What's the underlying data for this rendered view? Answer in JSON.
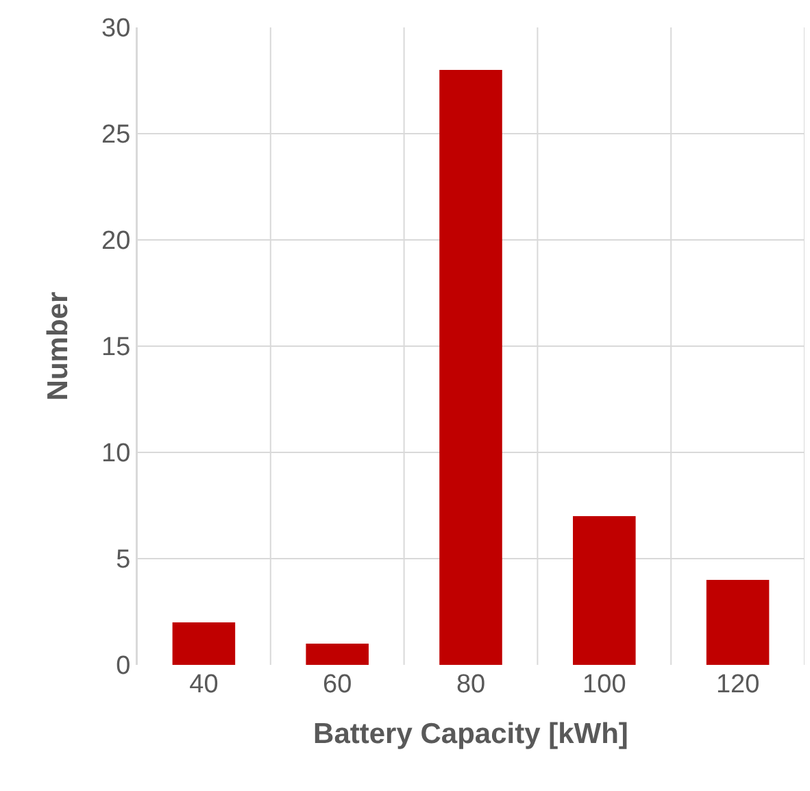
{
  "chart_data": {
    "type": "bar",
    "xlabel": "Battery Capacity [kWh]",
    "ylabel": "Number",
    "categories": [
      "40",
      "60",
      "80",
      "100",
      "120"
    ],
    "values": [
      2,
      1,
      28,
      7,
      4
    ],
    "color": "#c00000",
    "ylim": [
      0,
      30
    ],
    "yticks": [
      0,
      5,
      10,
      15,
      20,
      25,
      30
    ],
    "grid": true
  }
}
